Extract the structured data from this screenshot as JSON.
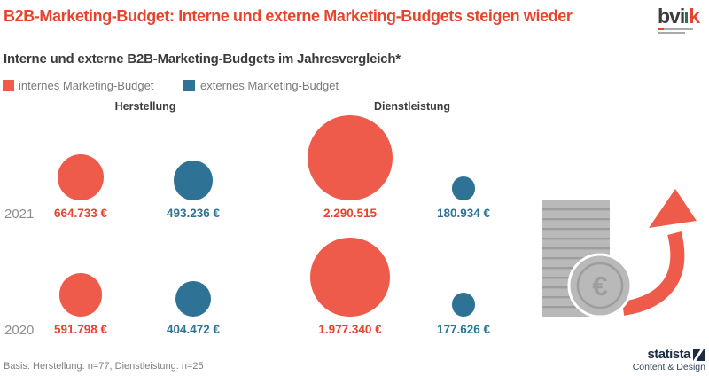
{
  "page": {
    "title": "B2B-Marketing-Budget: Interne und externe Marketing-Budgets steigen wieder",
    "subtitle": "Interne und externe B2B-Marketing-Budgets im Jahresvergleich*",
    "footnote": "Basis: Herstellung: n=77, Dienstleistung: n=25"
  },
  "legend": [
    {
      "label": "internes Marketing-Budget",
      "color": "red"
    },
    {
      "label": "externes Marketing-Budget",
      "color": "teal"
    }
  ],
  "groups": [
    "Herstellung",
    "Dienstleistung"
  ],
  "logos": {
    "bvik_text": "bvi",
    "bvik_k": "k",
    "statista": "statista",
    "statista_tagline": "Content & Design"
  },
  "graphic": {
    "coin_symbol": "€"
  },
  "colors": {
    "red_text": "#e8432e",
    "red_bubble": "#ef5b4b",
    "teal": "#2e7396",
    "dark": "#3c3c3b",
    "gray": "#7f7f7f",
    "year_gray": "#8e8e8e",
    "navy": "#1b2c43",
    "coin_gray": "#b9b9b9",
    "coin_gray_dark": "#9d9d9d"
  },
  "chart_data": {
    "type": "bubble",
    "title": "Interne und externe B2B-Marketing-Budgets im Jahresvergleich*",
    "unit": "EUR",
    "groups": [
      "Herstellung",
      "Dienstleistung"
    ],
    "series": [
      "internes Marketing-Budget",
      "externes Marketing-Budget"
    ],
    "size_encoding": "bubble area proportional to value",
    "rows": [
      {
        "year": "2021",
        "bubbles": [
          {
            "group": "Herstellung",
            "series": "internes Marketing-Budget",
            "value": 664733,
            "label": "664.733 €",
            "color": "red"
          },
          {
            "group": "Herstellung",
            "series": "externes Marketing-Budget",
            "value": 493236,
            "label": "493.236 €",
            "color": "teal"
          },
          {
            "group": "Dienstleistung",
            "series": "internes Marketing-Budget",
            "value": 2290515,
            "label": "2.290.515",
            "color": "red"
          },
          {
            "group": "Dienstleistung",
            "series": "externes Marketing-Budget",
            "value": 180934,
            "label": "180.934 €",
            "color": "teal"
          }
        ]
      },
      {
        "year": "2020",
        "bubbles": [
          {
            "group": "Herstellung",
            "series": "internes Marketing-Budget",
            "value": 591798,
            "label": "591.798 €",
            "color": "red"
          },
          {
            "group": "Herstellung",
            "series": "externes Marketing-Budget",
            "value": 404472,
            "label": "404.472 €",
            "color": "teal"
          },
          {
            "group": "Dienstleistung",
            "series": "internes Marketing-Budget",
            "value": 1977340,
            "label": "1.977.340 €",
            "color": "red"
          },
          {
            "group": "Dienstleistung",
            "series": "externes Marketing-Budget",
            "value": 177626,
            "label": "177.626 €",
            "color": "teal"
          }
        ]
      }
    ]
  }
}
